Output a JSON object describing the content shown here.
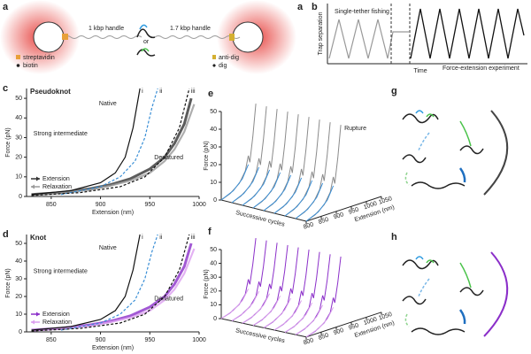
{
  "panel_a": {
    "letter": "a",
    "letter2": "a",
    "handle1": "1 kbp handle",
    "or": "or",
    "handle2": "1.7 kbp handle",
    "legend": [
      "streptavidin",
      "biotin",
      "anti-dig",
      "dig"
    ]
  },
  "panel_b": {
    "letter": "b",
    "ylabel": "Trap separation",
    "xlabel": "Time",
    "phase1": "Single-tether fishing",
    "phase2": "Force-extension experiment"
  },
  "chart_data": [
    {
      "type": "line",
      "letter": "c",
      "title": "Pseudoknot",
      "title_color": "#222",
      "xlabel": "Extension (nm)",
      "ylabel": "Force (pN)",
      "xlim": [
        825,
        1000
      ],
      "ylim": [
        0,
        55
      ],
      "xticks": [
        850,
        900,
        950,
        1000
      ],
      "yticks": [
        0,
        10,
        20,
        30,
        40,
        50
      ],
      "annotations": [
        "Native",
        "Strong intermediate",
        "Denatured"
      ],
      "curve_labels": [
        "i",
        "ii",
        "iii"
      ],
      "wlc": [
        {
          "color": "#111",
          "dashed": false,
          "x": [
            830,
            870,
            900,
            915,
            925,
            933,
            940
          ],
          "values": [
            1,
            3,
            7,
            12,
            20,
            35,
            55
          ]
        },
        {
          "color": "#3a8fd6",
          "dashed": true,
          "x": [
            860,
            900,
            920,
            935,
            945,
            952,
            958
          ],
          "values": [
            1,
            5,
            10,
            18,
            30,
            45,
            55
          ]
        },
        {
          "color": "#111",
          "dashed": true,
          "x": [
            830,
            880,
            920,
            945,
            965,
            980,
            990
          ],
          "values": [
            0.5,
            2,
            5,
            10,
            20,
            35,
            55
          ]
        }
      ],
      "series": [
        {
          "name": "Extension",
          "color": "#333",
          "x": [
            830,
            860,
            890,
            910,
            930,
            950,
            965,
            975,
            985,
            992
          ],
          "values": [
            1,
            2,
            4,
            6,
            9,
            14,
            20,
            27,
            37,
            50
          ]
        },
        {
          "name": "Relaxation",
          "color": "#9a9a9a",
          "x": [
            830,
            860,
            890,
            910,
            930,
            950,
            965,
            975,
            985,
            995
          ],
          "values": [
            1,
            1.8,
            3.5,
            5.5,
            8,
            12,
            18,
            24,
            33,
            47
          ]
        }
      ]
    },
    {
      "type": "line",
      "letter": "d",
      "title": "Knot",
      "title_color": "#8b2fc9",
      "xlabel": "Extension (nm)",
      "ylabel": "Force (pN)",
      "xlim": [
        825,
        1000
      ],
      "ylim": [
        0,
        55
      ],
      "xticks": [
        850,
        900,
        950,
        1000
      ],
      "yticks": [
        0,
        10,
        20,
        30,
        40,
        50
      ],
      "annotations": [
        "Native",
        "Strong intermediate",
        "Denatured"
      ],
      "curve_labels": [
        "i",
        "ii",
        "iii"
      ],
      "wlc": [
        {
          "color": "#111",
          "dashed": false,
          "x": [
            830,
            870,
            900,
            915,
            925,
            933,
            940
          ],
          "values": [
            1,
            3,
            7,
            12,
            20,
            35,
            55
          ]
        },
        {
          "color": "#3a8fd6",
          "dashed": true,
          "x": [
            860,
            900,
            920,
            935,
            945,
            952,
            958
          ],
          "values": [
            1,
            5,
            10,
            18,
            30,
            45,
            55
          ]
        },
        {
          "color": "#111",
          "dashed": true,
          "x": [
            830,
            880,
            920,
            945,
            965,
            980,
            990
          ],
          "values": [
            0.5,
            2,
            5,
            10,
            20,
            35,
            55
          ]
        }
      ],
      "series": [
        {
          "name": "Extension",
          "color": "#8b2fc9",
          "x": [
            830,
            860,
            890,
            910,
            930,
            950,
            965,
            975,
            985,
            992
          ],
          "values": [
            1,
            2,
            4,
            6,
            9,
            14,
            20,
            27,
            37,
            50
          ]
        },
        {
          "name": "Relaxation",
          "color": "#dc9ff0",
          "x": [
            830,
            860,
            890,
            910,
            930,
            950,
            965,
            975,
            985,
            995
          ],
          "values": [
            1,
            1.8,
            3.5,
            5.5,
            8,
            12,
            18,
            24,
            33,
            47
          ]
        }
      ]
    },
    {
      "type": "waterfall",
      "letter": "e",
      "xlabel": "Extension (nm)",
      "ylabel": "Force (pN)",
      "zlabel": "Successive cycles",
      "annotation": "Rupture",
      "xlim": [
        800,
        1050
      ],
      "ylim": [
        0,
        50
      ],
      "xticks": [
        800,
        850,
        900,
        950,
        1000,
        1050
      ],
      "yticks": [
        0,
        10,
        20,
        30,
        40,
        50
      ],
      "series": [
        {
          "color": "#8a8a8a",
          "x": [
            800,
            830,
            860,
            880,
            890,
            895,
            905,
            915
          ],
          "values": [
            0,
            2,
            6,
            12,
            20,
            16,
            30,
            48
          ]
        },
        {
          "color": "#3a8fd6",
          "x": [
            800,
            840,
            870,
            890
          ],
          "values": [
            0,
            3,
            8,
            15
          ]
        }
      ]
    },
    {
      "type": "waterfall",
      "letter": "f",
      "xlabel": "Extension (nm)",
      "ylabel": "Force (pN)",
      "zlabel": "Successive cycles",
      "xlim": [
        800,
        1050
      ],
      "ylim": [
        0,
        50
      ],
      "xticks": [
        800,
        850,
        900,
        950,
        1000,
        1050
      ],
      "yticks": [
        0,
        10,
        20,
        30,
        40,
        50
      ],
      "series": [
        {
          "color": "#8b2fc9",
          "x": [
            800,
            830,
            860,
            880,
            890,
            895,
            905,
            915
          ],
          "values": [
            0,
            2,
            6,
            12,
            22,
            18,
            32,
            50
          ]
        },
        {
          "color": "#d9a0ec",
          "x": [
            800,
            840,
            870,
            890
          ],
          "values": [
            0,
            3,
            8,
            15
          ]
        }
      ]
    }
  ],
  "panel_g": {
    "letter": "g"
  },
  "panel_h": {
    "letter": "h"
  }
}
